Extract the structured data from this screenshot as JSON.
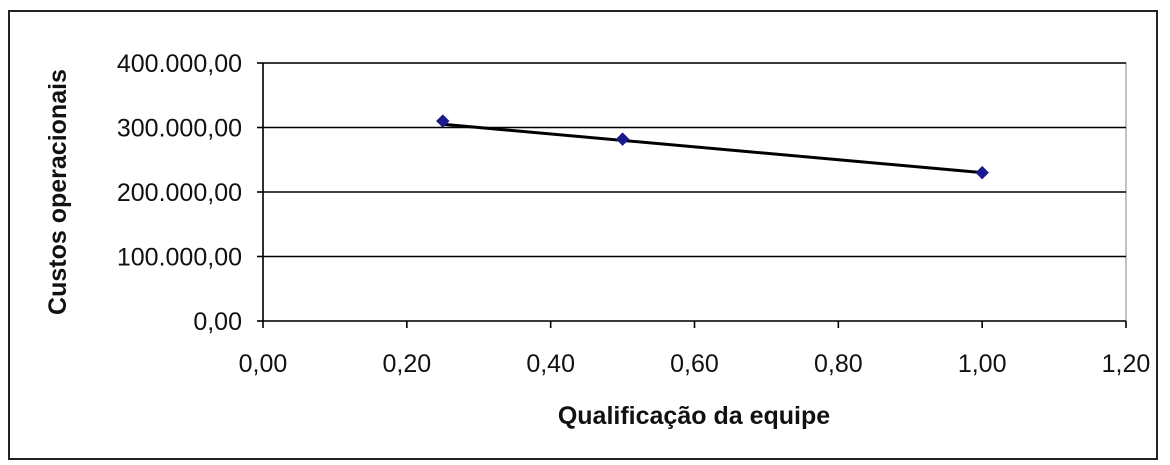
{
  "chart_data": {
    "type": "scatter",
    "xlabel": "Qualificação da equipe",
    "ylabel": "Custos operacionais",
    "xlim": [
      0,
      1.2
    ],
    "ylim": [
      0,
      400000
    ],
    "x_ticks": [
      "0,00",
      "0,20",
      "0,40",
      "0,60",
      "0,80",
      "1,00",
      "1,20"
    ],
    "y_ticks": [
      "0,00",
      "100.000,00",
      "200.000,00",
      "300.000,00",
      "400.000,00"
    ],
    "x_tick_values": [
      0,
      0.2,
      0.4,
      0.6,
      0.8,
      1.0,
      1.2
    ],
    "y_tick_values": [
      0,
      100000,
      200000,
      300000,
      400000
    ],
    "grid": "horizontal",
    "series": [
      {
        "points": [
          {
            "x": 0.25,
            "y": 310000
          },
          {
            "x": 0.5,
            "y": 282000
          },
          {
            "x": 1.0,
            "y": 230000
          }
        ],
        "color": "#1a1a8c"
      }
    ],
    "trendline": {
      "points": [
        {
          "x": 0.25,
          "y": 305000
        },
        {
          "x": 1.0,
          "y": 230000
        }
      ],
      "color": "#000000"
    }
  }
}
